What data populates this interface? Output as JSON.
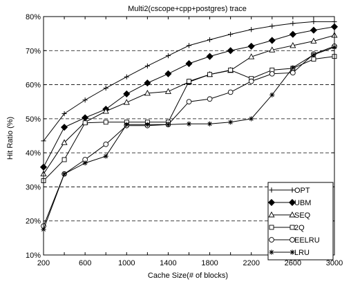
{
  "chart_data": {
    "type": "line",
    "title": "Multi2(cscope+cpp+postgres) trace",
    "xlabel": "Cache Size(# of blocks)",
    "ylabel": "Hit Ratio (%)",
    "x": [
      200,
      400,
      600,
      800,
      1000,
      1200,
      1400,
      1600,
      1800,
      2000,
      2200,
      2400,
      2600,
      2800,
      3000
    ],
    "xticks": [
      200,
      600,
      1000,
      1400,
      1800,
      2200,
      2600,
      3000
    ],
    "xtick_labels": [
      "200",
      "600",
      "1000",
      "1400",
      "1800",
      "2200",
      "2600",
      "3000"
    ],
    "yticks": [
      10,
      20,
      30,
      40,
      50,
      60,
      70,
      80
    ],
    "ytick_labels": [
      "10%",
      "20%",
      "30%",
      "40%",
      "50%",
      "60%",
      "70%",
      "80%"
    ],
    "xlim": [
      200,
      3000
    ],
    "ylim": [
      10,
      80
    ],
    "grid": "horizontal dashed",
    "legend_position": "bottom-right",
    "series": [
      {
        "name": "OPT",
        "marker": "plus",
        "values": [
          43.5,
          51.5,
          55.5,
          59.0,
          62.3,
          65.5,
          68.5,
          71.5,
          73.2,
          74.8,
          76.2,
          77.2,
          78.0,
          78.5,
          78.5
        ]
      },
      {
        "name": "UBM",
        "marker": "filled-diamond",
        "values": [
          35.8,
          47.5,
          50.3,
          52.8,
          57.3,
          60.5,
          63.2,
          66.2,
          68.3,
          70.0,
          71.3,
          73.0,
          74.8,
          76.0,
          77.0
        ]
      },
      {
        "name": "SEQ",
        "marker": "triangle",
        "values": [
          33.8,
          43.0,
          49.0,
          52.2,
          54.8,
          57.5,
          58.0,
          60.8,
          63.0,
          64.2,
          68.2,
          70.2,
          71.5,
          72.8,
          74.5
        ]
      },
      {
        "name": "2Q",
        "marker": "square",
        "values": [
          31.8,
          38.0,
          48.8,
          49.0,
          49.0,
          49.0,
          49.0,
          61.0,
          63.0,
          64.3,
          61.8,
          64.3,
          64.8,
          67.5,
          68.3
        ]
      },
      {
        "name": "EELRU",
        "marker": "circle",
        "values": [
          18.5,
          33.8,
          38.0,
          42.5,
          48.0,
          48.0,
          48.3,
          55.0,
          55.8,
          57.8,
          61.0,
          63.2,
          63.5,
          69.0,
          71.3
        ]
      },
      {
        "name": "LRU",
        "marker": "star",
        "values": [
          17.5,
          33.8,
          37.0,
          39.0,
          48.3,
          48.3,
          48.3,
          48.5,
          48.5,
          49.0,
          50.0,
          57.0,
          65.0,
          68.8,
          71.0
        ]
      }
    ]
  }
}
